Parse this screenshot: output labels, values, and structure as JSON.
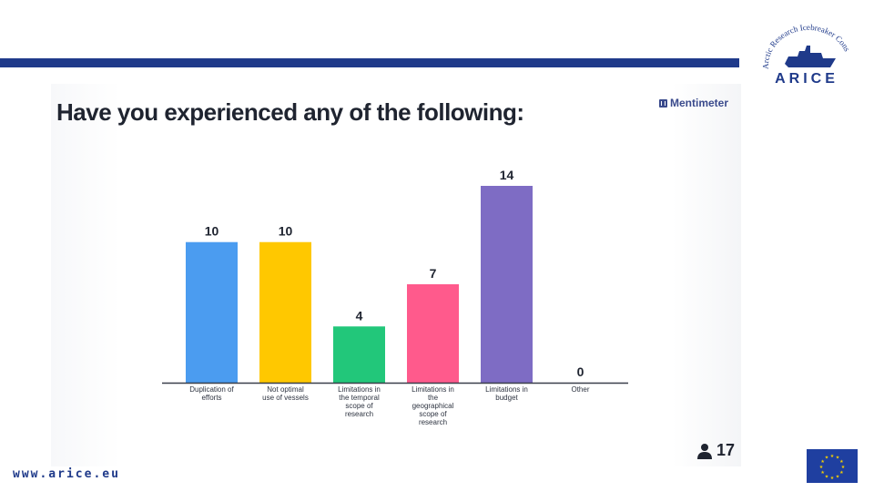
{
  "slide": {
    "question": "Have you experienced any of the following:",
    "mentimeter_label": "Mentimeter",
    "respondent_count": "17",
    "website": "www.arice.eu"
  },
  "logo": {
    "arc_text": "Arctic Research Icebreaker Cons",
    "wordmark": "ARICE"
  },
  "colors": {
    "brand_navy": "#1f3a8a",
    "eu_blue": "#1f3fa0",
    "eu_stars": "#f5d000"
  },
  "chart_data": {
    "type": "bar",
    "categories": [
      [
        "Duplication of",
        "efforts"
      ],
      [
        "Not optimal",
        "use of vessels"
      ],
      [
        "Limitations in",
        "the temporal",
        "scope of",
        "research"
      ],
      [
        "Limitations in",
        "the",
        "geographical",
        "scope of",
        "research"
      ],
      [
        "Limitations in",
        "budget"
      ],
      [
        "Other"
      ]
    ],
    "values": [
      10,
      10,
      4,
      7,
      14,
      0
    ],
    "colors": [
      "#4b9cf0",
      "#ffc800",
      "#22c77a",
      "#ff5a8c",
      "#7e6cc4",
      "#cccccc"
    ],
    "title": "Have you experienced any of the following:",
    "xlabel": "",
    "ylabel": "",
    "ylim": [
      0,
      14
    ],
    "grid": false,
    "legend": "none"
  }
}
